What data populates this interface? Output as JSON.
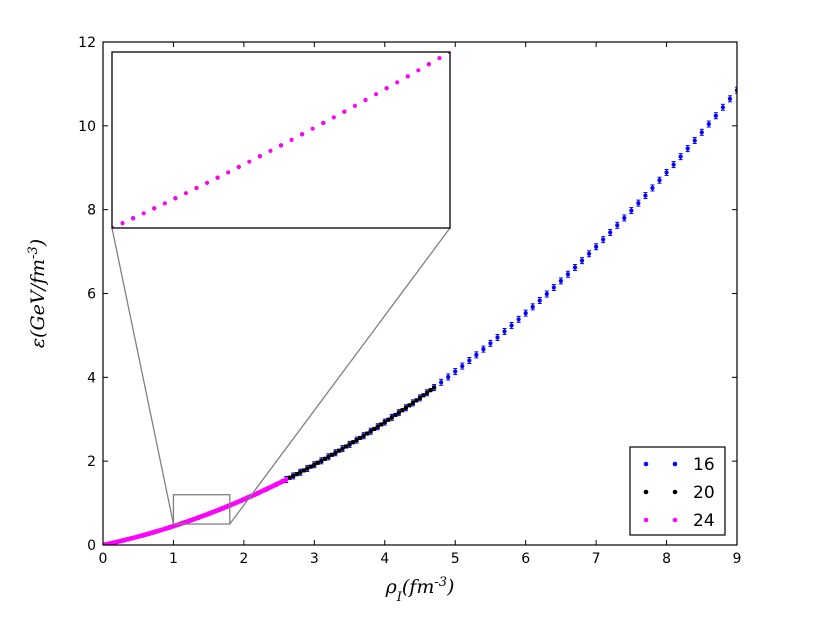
{
  "chart_data": {
    "type": "scatter",
    "xlabel": "ρ_I(fm^-3)",
    "ylabel": "ε(GeV/fm^-3)",
    "xlim": [
      0,
      9
    ],
    "ylim": [
      0,
      12
    ],
    "xticks": [
      "0",
      "1",
      "2",
      "3",
      "4",
      "5",
      "6",
      "7",
      "8",
      "9"
    ],
    "yticks": [
      "0",
      "2",
      "4",
      "6",
      "8",
      "10",
      "12"
    ],
    "legend_position": "lower-right",
    "curve_formula": "epsilon = 0.355*rho + 0.0945*rho^2 (fitted to read-off points)",
    "series": [
      {
        "name": "16",
        "color": "#0000ff",
        "x_range": [
          2.6,
          9.0
        ],
        "x_step": 0.1,
        "marker": "dot-with-errorbar"
      },
      {
        "name": "20",
        "color": "#000000",
        "x_range": [
          0.0,
          4.7
        ],
        "x_step": 0.05,
        "marker": "dot-with-errorbar"
      },
      {
        "name": "24",
        "color": "#ff00ff",
        "x_range": [
          0.0,
          2.6
        ],
        "x_step": 0.025,
        "marker": "dot-with-errorbar"
      }
    ],
    "sample_points": [
      {
        "x": 1.0,
        "y": 0.45
      },
      {
        "x": 2.0,
        "y": 1.1
      },
      {
        "x": 3.0,
        "y": 2.4
      },
      {
        "x": 4.0,
        "y": 3.5
      },
      {
        "x": 5.0,
        "y": 4.7
      },
      {
        "x": 6.0,
        "y": 6.5
      },
      {
        "x": 7.0,
        "y": 7.9
      },
      {
        "x": 8.0,
        "y": 9.9
      },
      {
        "x": 9.0,
        "y": 11.6
      }
    ],
    "inset": {
      "source_xlim": [
        1.0,
        1.8
      ],
      "source_ylim": [
        0.5,
        1.2
      ],
      "description": "zoomed view of the region x 1.0–1.8"
    }
  }
}
